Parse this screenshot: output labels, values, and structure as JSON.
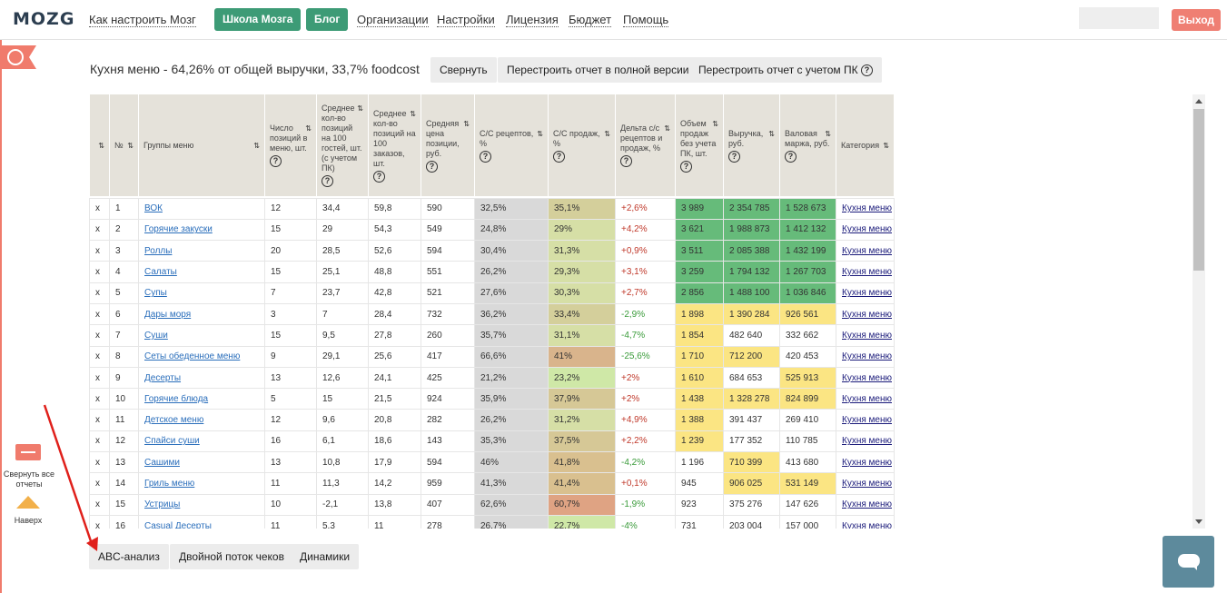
{
  "header": {
    "logo_text": "MOZG",
    "nav_links": [
      "Как настроить Мозг",
      "Организации",
      "Настройки",
      "Лицензия",
      "Бюджет",
      "Помощь"
    ],
    "btn_school": "Школа Мозга",
    "btn_blog": "Блог",
    "logout": "Выход"
  },
  "sidebar": {
    "collapse_label": "Свернуть все отчеты",
    "up_label": "Наверх"
  },
  "report": {
    "title": "Кухня меню - 64,26% от общей выручки, 33,7% foodcost",
    "btn_collapse": "Свернуть",
    "btn_rebuild_full": "Перестроить отчет в полной версии",
    "btn_rebuild_pk": "Перестроить отчет с учетом ПК"
  },
  "columns": [
    "",
    "№",
    "Группы меню",
    "Число позиций в меню, шт.",
    "Среднее кол-во позиций на 100 гостей, шт. (с учетом ПК)",
    "Среднее кол-во позиций на 100 заказов, шт.",
    "Средняя цена позиции, руб.",
    "С/С рецептов, %",
    "С/С продаж, %",
    "Дельта с/с рецептов и продаж, %",
    "Объем продаж без учета ПК, шт.",
    "Выручка, руб.",
    "Валовая маржа, руб.",
    "Категория"
  ],
  "rows": [
    [
      "x",
      "1",
      "ВОК",
      "12",
      "34,4",
      "59,8",
      "590",
      "32,5%",
      "35,1%",
      "+2,6%",
      "3 989",
      "2 354 785",
      "1 528 673",
      "Кухня меню"
    ],
    [
      "x",
      "2",
      "Горячие закуски",
      "15",
      "29",
      "54,3",
      "549",
      "24,8%",
      "29%",
      "+4,2%",
      "3 621",
      "1 988 873",
      "1 412 132",
      "Кухня меню"
    ],
    [
      "x",
      "3",
      "Роллы",
      "20",
      "28,5",
      "52,6",
      "594",
      "30,4%",
      "31,3%",
      "+0,9%",
      "3 511",
      "2 085 388",
      "1 432 199",
      "Кухня меню"
    ],
    [
      "x",
      "4",
      "Салаты",
      "15",
      "25,1",
      "48,8",
      "551",
      "26,2%",
      "29,3%",
      "+3,1%",
      "3 259",
      "1 794 132",
      "1 267 703",
      "Кухня меню"
    ],
    [
      "x",
      "5",
      "Супы",
      "7",
      "23,7",
      "42,8",
      "521",
      "27,6%",
      "30,3%",
      "+2,7%",
      "2 856",
      "1 488 100",
      "1 036 846",
      "Кухня меню"
    ],
    [
      "x",
      "6",
      "Дары моря",
      "3",
      "7",
      "28,4",
      "732",
      "36,2%",
      "33,4%",
      "-2,9%",
      "1 898",
      "1 390 284",
      "926 561",
      "Кухня меню"
    ],
    [
      "x",
      "7",
      "Суши",
      "15",
      "9,5",
      "27,8",
      "260",
      "35,7%",
      "31,1%",
      "-4,7%",
      "1 854",
      "482 640",
      "332 662",
      "Кухня меню"
    ],
    [
      "x",
      "8",
      "Сеты обеденное меню",
      "9",
      "29,1",
      "25,6",
      "417",
      "66,6%",
      "41%",
      "-25,6%",
      "1 710",
      "712 200",
      "420 453",
      "Кухня меню"
    ],
    [
      "x",
      "9",
      "Десерты",
      "13",
      "12,6",
      "24,1",
      "425",
      "21,2%",
      "23,2%",
      "+2%",
      "1 610",
      "684 653",
      "525 913",
      "Кухня меню"
    ],
    [
      "x",
      "10",
      "Горячие блюда",
      "5",
      "15",
      "21,5",
      "924",
      "35,9%",
      "37,9%",
      "+2%",
      "1 438",
      "1 328 278",
      "824 899",
      "Кухня меню"
    ],
    [
      "x",
      "11",
      "Детское меню",
      "12",
      "9,6",
      "20,8",
      "282",
      "26,2%",
      "31,2%",
      "+4,9%",
      "1 388",
      "391 437",
      "269 410",
      "Кухня меню"
    ],
    [
      "x",
      "12",
      "Спайси суши",
      "16",
      "6,1",
      "18,6",
      "143",
      "35,3%",
      "37,5%",
      "+2,2%",
      "1 239",
      "177 352",
      "110 785",
      "Кухня меню"
    ],
    [
      "x",
      "13",
      "Сашими",
      "13",
      "10,8",
      "17,9",
      "594",
      "46%",
      "41,8%",
      "-4,2%",
      "1 196",
      "710 399",
      "413 680",
      "Кухня меню"
    ],
    [
      "x",
      "14",
      "Гриль меню",
      "11",
      "11,3",
      "14,2",
      "959",
      "41,3%",
      "41,4%",
      "+0,1%",
      "945",
      "906 025",
      "531 149",
      "Кухня меню"
    ],
    [
      "x",
      "15",
      "Устрицы",
      "10",
      "-2,1",
      "13,8",
      "407",
      "62,6%",
      "60,7%",
      "-1,9%",
      "923",
      "375 276",
      "147 626",
      "Кухня меню"
    ],
    [
      "x",
      "16",
      "Casual Десерты",
      "11",
      "5,3",
      "11",
      "278",
      "26,7%",
      "22,7%",
      "-4%",
      "731",
      "203 004",
      "157 000",
      "Кухня меню"
    ]
  ],
  "cell_colors": {
    "recipe_cost": "#d9d9d9",
    "sales_cost": [
      "#d4cf9b",
      "#d6dfa6",
      "#d6dfa6",
      "#d6dfa6",
      "#d6dfa6",
      "#d4cf9b",
      "#d6dfa6",
      "#d9b48c",
      "#cfe8a7",
      "#d6c896",
      "#d6dfa6",
      "#d6c896",
      "#d9c08f",
      "#d9c08f",
      "#dfa383",
      "#cfe8a7"
    ],
    "volume": [
      "#66bb7a",
      "#66bb7a",
      "#66bb7a",
      "#66bb7a",
      "#66bb7a",
      "#fbe583",
      "#fbe583",
      "#fbe583",
      "#fbe583",
      "#fbe583",
      "#fbe583",
      "#fbe583",
      "#ffffff",
      "#ffffff",
      "#ffffff",
      "#ffffff"
    ],
    "revenue": [
      "#66bb7a",
      "#66bb7a",
      "#66bb7a",
      "#66bb7a",
      "#66bb7a",
      "#fbe583",
      "#ffffff",
      "#fbe583",
      "#ffffff",
      "#fbe583",
      "#ffffff",
      "#ffffff",
      "#fbe583",
      "#fbe583",
      "#ffffff",
      "#ffffff"
    ],
    "margin": [
      "#66bb7a",
      "#66bb7a",
      "#66bb7a",
      "#66bb7a",
      "#66bb7a",
      "#fbe583",
      "#ffffff",
      "#ffffff",
      "#fbe583",
      "#fbe583",
      "#ffffff",
      "#ffffff",
      "#ffffff",
      "#fbe583",
      "#ffffff",
      "#ffffff"
    ]
  },
  "bottom_tabs": [
    "ABC-анализ",
    "Двойной поток чеков",
    "Динамики"
  ],
  "colors": {
    "brand_green": "#3d9b76",
    "logout_red": "#ef7f73",
    "annotation_arrow": "#e0201b"
  }
}
